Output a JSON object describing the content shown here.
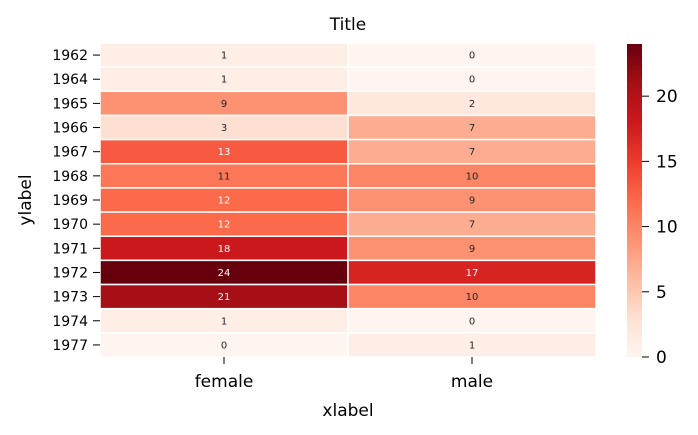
{
  "chart_data": {
    "type": "heatmap",
    "title": "Title",
    "xlabel": "xlabel",
    "ylabel": "ylabel",
    "x_categories": [
      "female",
      "male"
    ],
    "y_categories": [
      "1962",
      "1964",
      "1965",
      "1966",
      "1967",
      "1968",
      "1969",
      "1970",
      "1971",
      "1972",
      "1973",
      "1974",
      "1977"
    ],
    "values": [
      [
        1,
        0
      ],
      [
        1,
        0
      ],
      [
        9,
        2
      ],
      [
        3,
        7
      ],
      [
        13,
        7
      ],
      [
        11,
        10
      ],
      [
        12,
        9
      ],
      [
        12,
        7
      ],
      [
        18,
        9
      ],
      [
        24,
        17
      ],
      [
        21,
        10
      ],
      [
        1,
        0
      ],
      [
        0,
        1
      ]
    ],
    "colormap": "Reds",
    "value_range": [
      0,
      24
    ],
    "colorbar_ticks": [
      0,
      5,
      10,
      15,
      20
    ],
    "annotations": true,
    "cell_border_color": "#ffffff"
  }
}
